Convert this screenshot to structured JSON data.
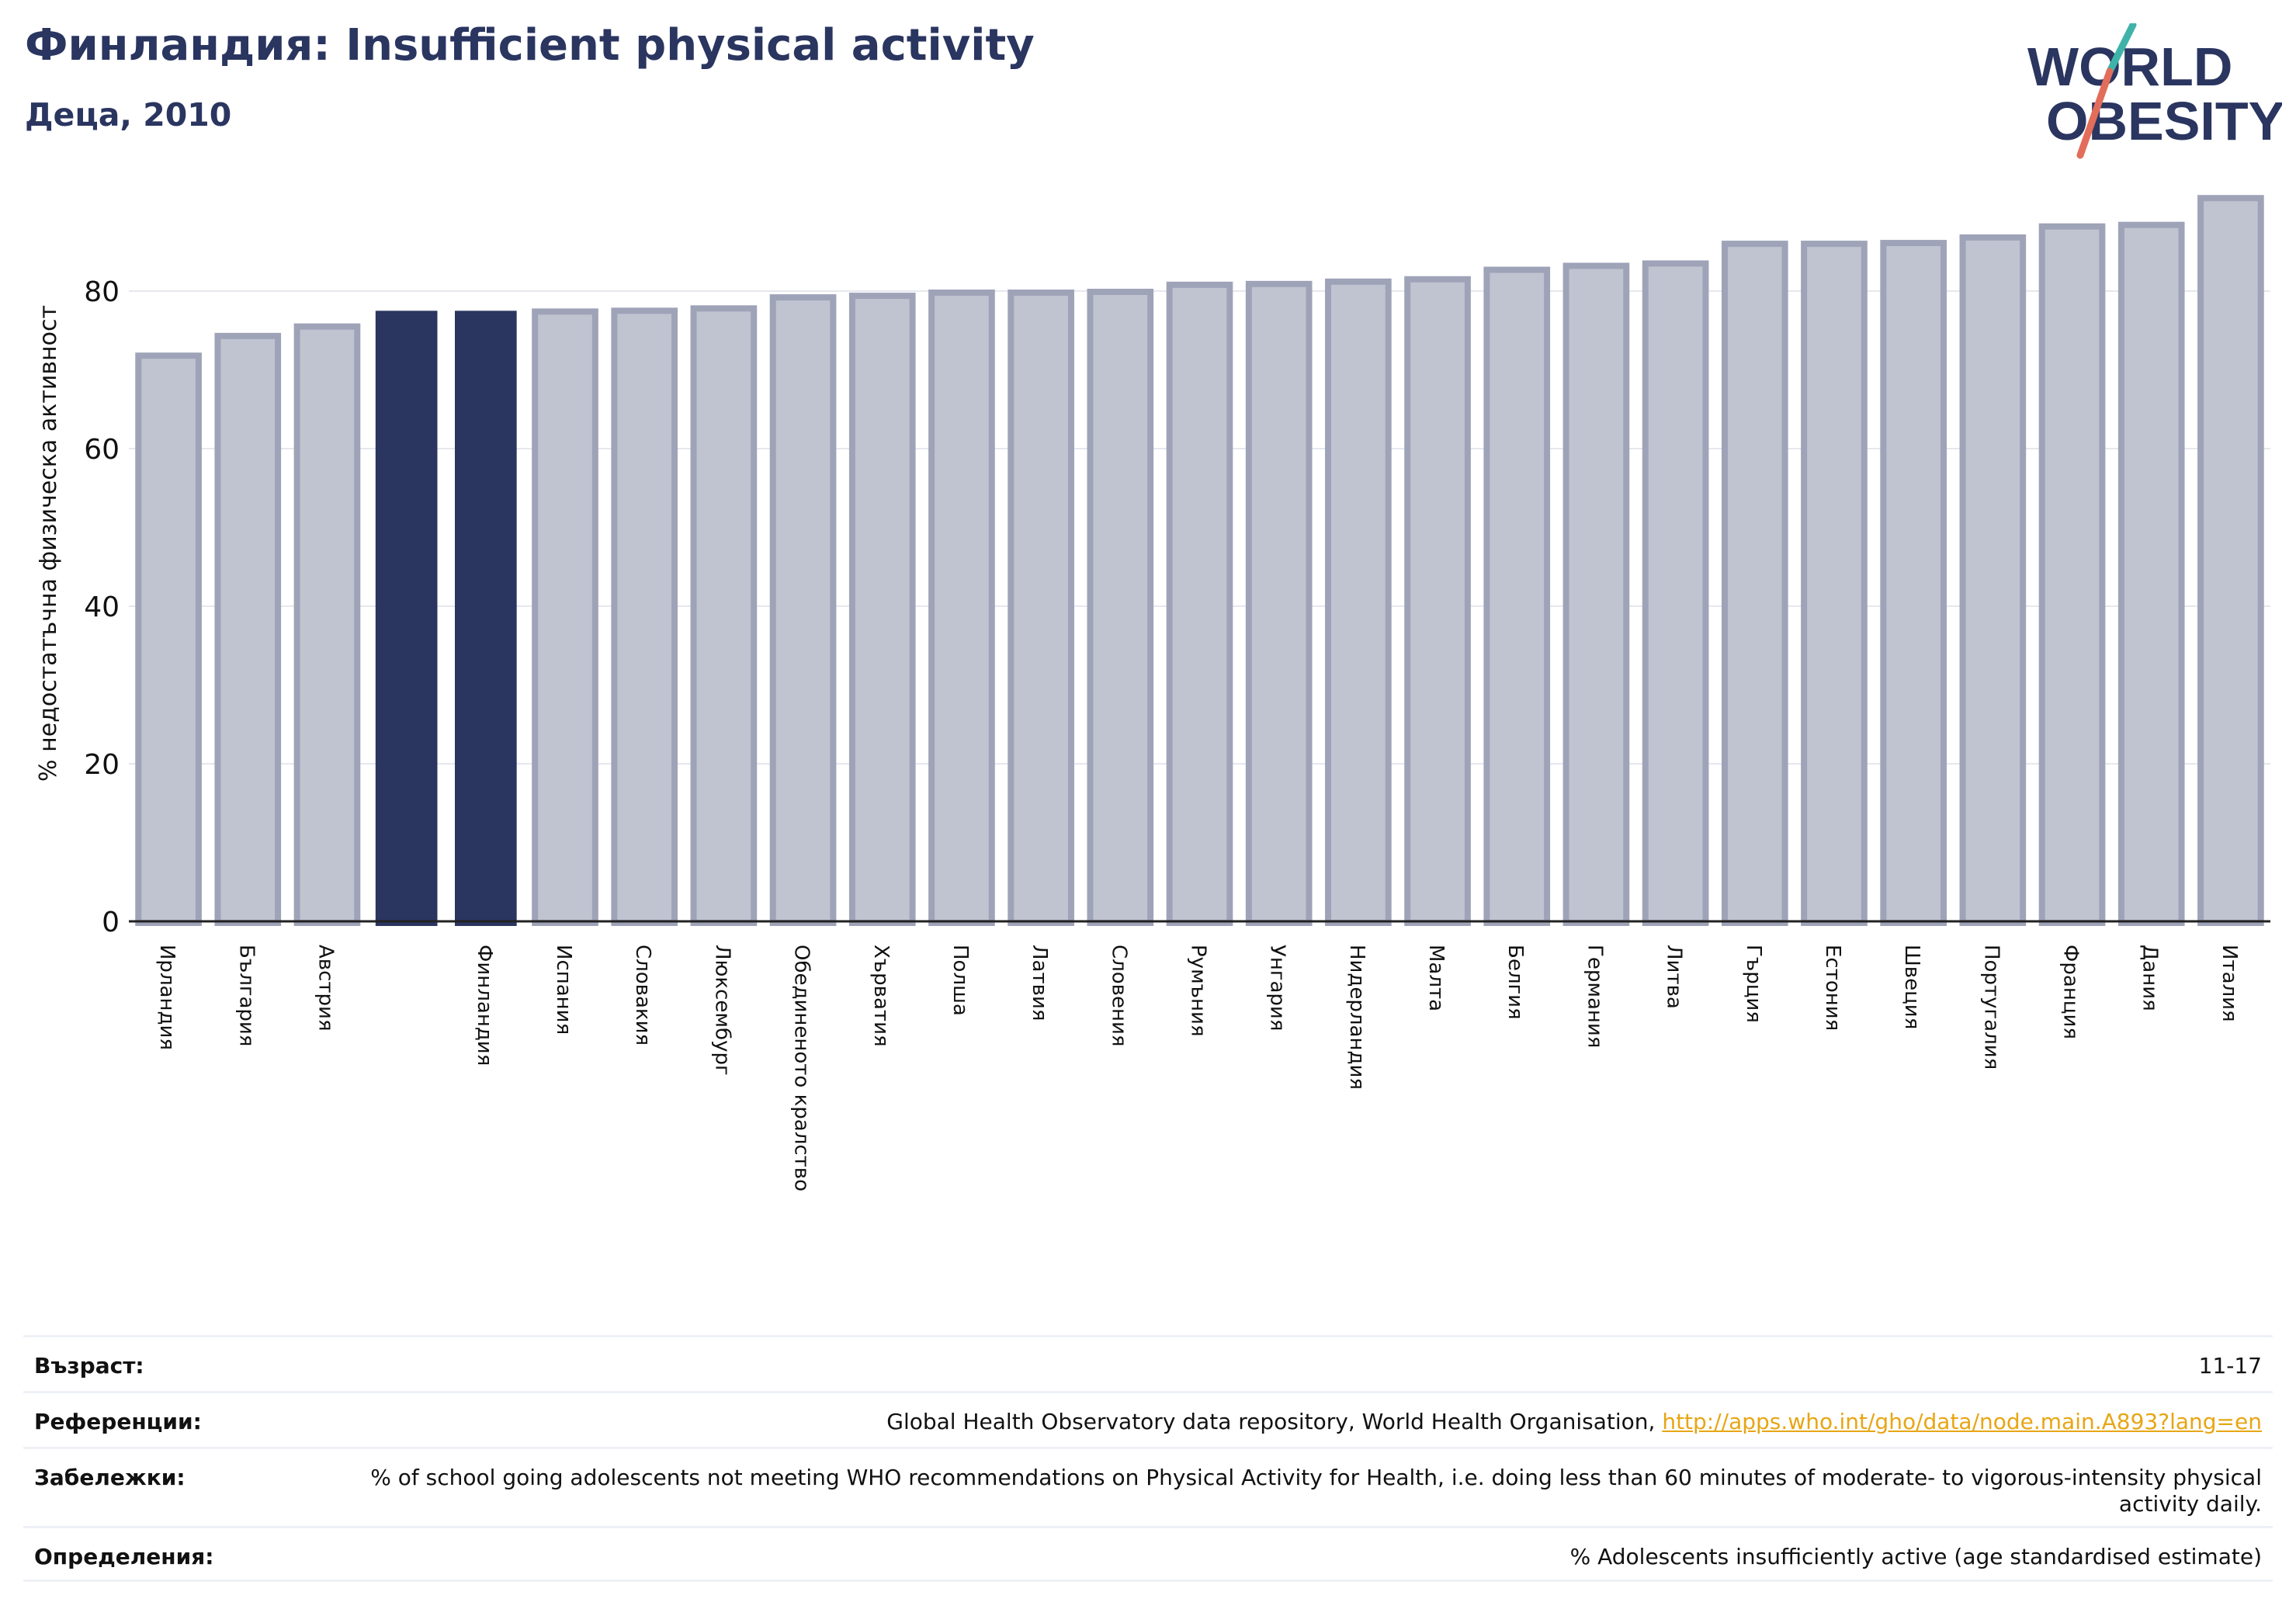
{
  "header": {
    "title": "Финландия: Insufficient physical activity",
    "subtitle": "Деца, 2010"
  },
  "logo": {
    "line1": "WORLD",
    "line2": "OBESITY"
  },
  "colors": {
    "highlight": "#2a3560",
    "bar_fill": "#c0c3d0",
    "bar_stroke": "#9fa3b8",
    "logo_text": "#2a3560",
    "logo_teal": "#3fb3a9",
    "logo_coral": "#e26d5a",
    "link": "#e7a614"
  },
  "chart_data": {
    "type": "bar",
    "title": "Финландия: Insufficient physical activity",
    "subtitle": "Деца, 2010",
    "ylabel": "% недостатъчна физическа активност",
    "xlabel": "",
    "ylim": [
      0,
      95
    ],
    "yticks": [
      0,
      20,
      40,
      60,
      80
    ],
    "grid": true,
    "legend": "none",
    "categories": [
      "Ирландия",
      "България",
      "Австрия",
      "",
      "Финландия",
      "Испания",
      "Словакия",
      "Люксембург",
      "Обединеното кралство",
      "Хърватия",
      "Полша",
      "Латвия",
      "Словения",
      "Румъния",
      "Унгария",
      "Нидерландия",
      "Малта",
      "Белгия",
      "Германия",
      "Литва",
      "Гърция",
      "Естония",
      "Швеция",
      "Португалия",
      "Франция",
      "Дания",
      "Италия"
    ],
    "values": [
      71.8,
      74.3,
      75.5,
      77.4,
      77.4,
      77.4,
      77.5,
      77.8,
      79.2,
      79.4,
      79.8,
      79.8,
      79.9,
      80.8,
      80.9,
      81.2,
      81.5,
      82.7,
      83.2,
      83.5,
      86.0,
      86.0,
      86.1,
      86.8,
      88.2,
      88.4,
      91.8
    ],
    "highlighted": [
      3,
      4
    ]
  },
  "info": {
    "age_label": "Възраст:",
    "age_value": "11-17",
    "references_label": "Референции:",
    "references_text": "Global Health Observatory data repository, World Health Organisation, ",
    "references_link": "http://apps.who.int/gho/data/node.main.A893?lang=en",
    "notes_label": "Забележки:",
    "notes_value": "% of school going adolescents not meeting WHO recommendations on Physical Activity for Health, i.e. doing less than 60 minutes of moderate- to vigorous-intensity physical activity daily.",
    "definitions_label": "Определения:",
    "definitions_value": "% Adolescents insufficiently active (age standardised estimate)"
  }
}
